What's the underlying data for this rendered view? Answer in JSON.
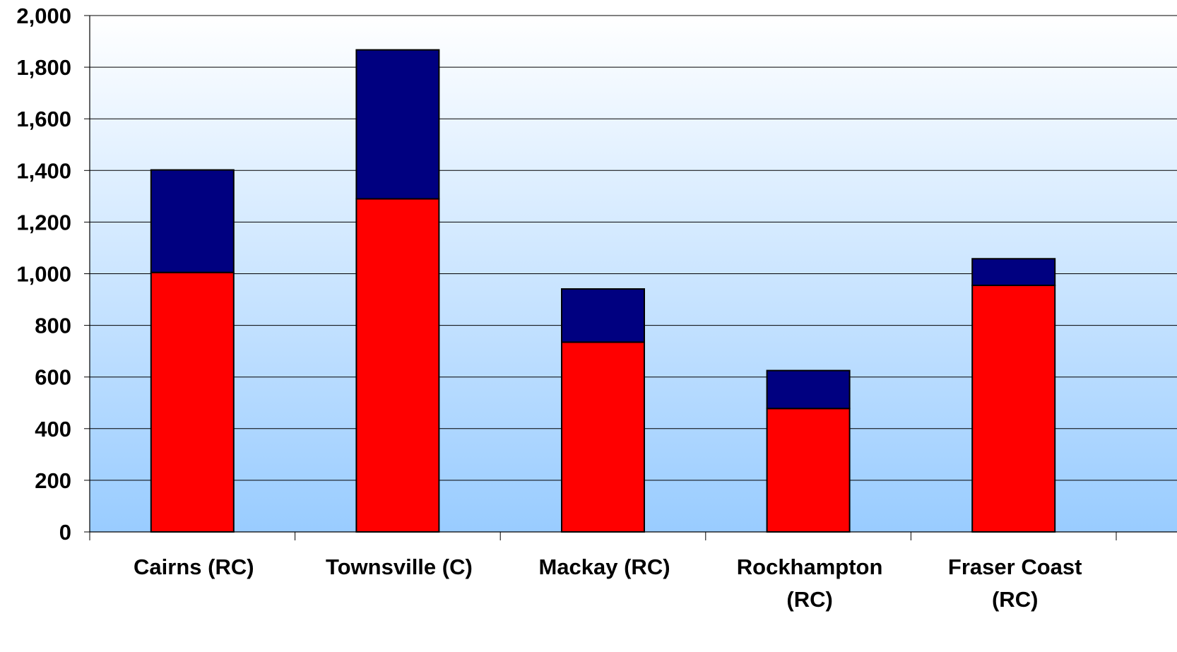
{
  "chart_data": {
    "type": "bar",
    "stacked": true,
    "categories": [
      "Cairns (RC)",
      "Townsville (C)",
      "Mackay (RC)",
      "Rockhampton (RC)",
      "Fraser Coast (RC)"
    ],
    "category_lines": [
      [
        "Cairns (RC)"
      ],
      [
        "Townsville (C)"
      ],
      [
        "Mackay (RC)"
      ],
      [
        "Rockhampton",
        "(RC)"
      ],
      [
        "Fraser Coast",
        "(RC)"
      ]
    ],
    "series": [
      {
        "values": [
          1005,
          1290,
          735,
          478,
          955
        ],
        "color": "#FF0000"
      },
      {
        "values": [
          397,
          577,
          206,
          147,
          103
        ],
        "color": "#000080"
      }
    ],
    "yticks": [
      "0",
      "200",
      "400",
      "600",
      "800",
      "1,000",
      "1,200",
      "1,400",
      "1,600",
      "1,800",
      "2,000"
    ],
    "ylim": [
      0,
      2000
    ],
    "grid": true,
    "legend": "none",
    "title": "",
    "xlabel": "",
    "ylabel": "",
    "background_gradient": [
      "#FFFFFF",
      "#99CCFF"
    ]
  }
}
